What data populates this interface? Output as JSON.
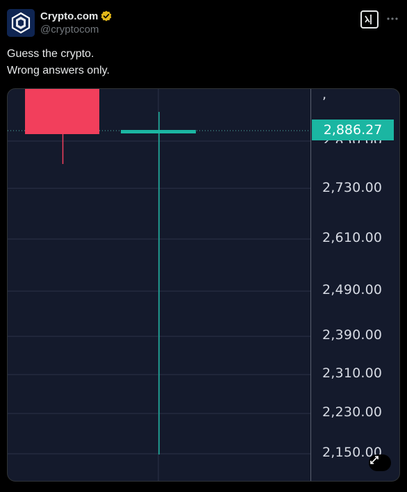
{
  "author": {
    "display_name": "Crypto.com",
    "handle": "@cryptocom",
    "verified": true
  },
  "icons": {
    "avatar": "crypto-com-logo",
    "verified": "verified-badge-icon",
    "grok": "grok-icon",
    "more": "more-icon",
    "expand": "expand-icon"
  },
  "tweet": {
    "lines": [
      "Guess the crypto.",
      "Wrong answers only."
    ]
  },
  "chart_data": {
    "type": "candlestick",
    "price_axis_labels": [
      "2,850.00",
      "2,730.00",
      "2,610.00",
      "2,490.00",
      "2,390.00",
      "2,310.00",
      "2,230.00",
      "2,150.00"
    ],
    "current_price": "2,886.27",
    "candles": [
      {
        "direction": "down",
        "open": 3050,
        "close": 2886,
        "high": 3050,
        "low": 2800
      },
      {
        "direction": "up",
        "open": 2886,
        "close": 2886,
        "high": 2905,
        "low": 2150
      }
    ],
    "colors": {
      "down": "#f23f5c",
      "up": "#1bb6a2",
      "background": "#141a2c",
      "grid": "#2c3347"
    }
  }
}
